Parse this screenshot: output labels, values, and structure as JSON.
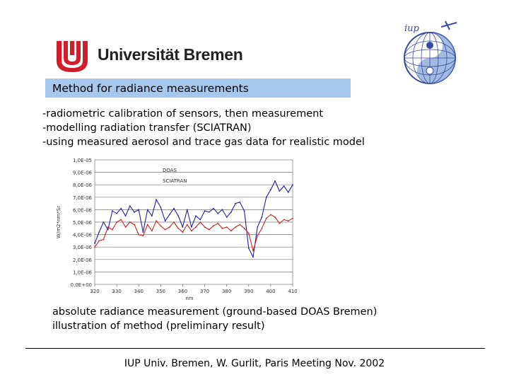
{
  "header": {
    "logo_text": "Universität Bremen",
    "iup_logo_label": "iup"
  },
  "title": "Method for radiance measurements",
  "bullets": [
    "-radiometric calibration of sensors, then measurement",
    "-modelling radiation transfer (SCIATRAN)",
    "-using measured aerosol and trace gas data for realistic model"
  ],
  "chart_data": {
    "type": "line",
    "xlabel": "nm",
    "ylabel": "W/m2*nm*Sr",
    "xlim": [
      320,
      410
    ],
    "ylim": [
      0,
      1e-05
    ],
    "x_ticks": [
      "320",
      "330",
      "340",
      "350",
      "360",
      "370",
      "380",
      "390",
      "400",
      "410"
    ],
    "y_ticks": [
      "0,0E+00",
      "1,0E-06",
      "2,0E-06",
      "3,0E-06",
      "4,0E-06",
      "5,0E-06",
      "6,0E-06",
      "7,0E-06",
      "8,0E-06",
      "9,0E-06",
      "1,0E-05"
    ],
    "grid": "horizontal",
    "legend_position": "top-left",
    "series": [
      {
        "name": "DOAS",
        "color": "#22229a",
        "x": [
          320,
          322,
          324,
          326,
          328,
          330,
          332,
          334,
          336,
          338,
          340,
          342,
          344,
          346,
          348,
          350,
          352,
          354,
          356,
          358,
          360,
          362,
          364,
          366,
          368,
          370,
          372,
          374,
          376,
          378,
          380,
          382,
          384,
          386,
          388,
          390,
          392,
          394,
          396,
          398,
          400,
          402,
          404,
          406,
          408,
          410
        ],
        "y": [
          3.3e-06,
          4.2e-06,
          5e-06,
          4.4e-06,
          5.9e-06,
          5.7e-06,
          6.1e-06,
          5.5e-06,
          6.3e-06,
          5.8e-06,
          6e-06,
          4.2e-06,
          6e-06,
          5.5e-06,
          6.8e-06,
          6.2e-06,
          5.1e-06,
          5.6e-06,
          6.1e-06,
          5.5e-06,
          4.6e-06,
          6e-06,
          4.6e-06,
          5.5e-06,
          5.2e-06,
          5.9e-06,
          5.8e-06,
          6.1e-06,
          5.7e-06,
          6e-06,
          5.4e-06,
          5.8e-06,
          6.5e-06,
          6.6e-06,
          5.9e-06,
          2.9e-06,
          2.2e-06,
          4.6e-06,
          5.4e-06,
          7e-06,
          7.6e-06,
          8.3e-06,
          7.5e-06,
          7.9e-06,
          7.4e-06,
          8e-06
        ]
      },
      {
        "name": "SCIATRAN",
        "color": "#cc2222",
        "x": [
          320,
          322,
          324,
          326,
          328,
          330,
          332,
          334,
          336,
          338,
          340,
          342,
          344,
          346,
          348,
          350,
          352,
          354,
          356,
          358,
          360,
          362,
          364,
          366,
          368,
          370,
          372,
          374,
          376,
          378,
          380,
          382,
          384,
          386,
          388,
          390,
          392,
          394,
          396,
          398,
          400,
          402,
          404,
          406,
          408,
          410
        ],
        "y": [
          3e-06,
          3.5e-06,
          3.6e-06,
          4.6e-06,
          4.4e-06,
          5e-06,
          5.2e-06,
          4.6e-06,
          5e-06,
          4.8e-06,
          4e-06,
          3.9e-06,
          4.8e-06,
          4.3e-06,
          5.1e-06,
          4.7e-06,
          4.4e-06,
          4.6e-06,
          5e-06,
          4.5e-06,
          4.2e-06,
          4.8e-06,
          4.3e-06,
          4.6e-06,
          5e-06,
          4.6e-06,
          4.4e-06,
          4.7e-06,
          4.9e-06,
          4.5e-06,
          4.6e-06,
          4.3e-06,
          4.6e-06,
          4.8e-06,
          4.5e-06,
          4.1e-06,
          2.7e-06,
          3.9e-06,
          4.5e-06,
          5.3e-06,
          5.6e-06,
          5.4e-06,
          4.9e-06,
          5.2e-06,
          5.1e-06,
          5.3e-06
        ]
      }
    ]
  },
  "caption": [
    "absolute radiance measurement (ground-based DOAS Bremen)",
    "illustration of method (preliminary result)"
  ],
  "footer": "IUP Univ. Bremen, W. Gurlit, Paris Meeting Nov. 2002"
}
